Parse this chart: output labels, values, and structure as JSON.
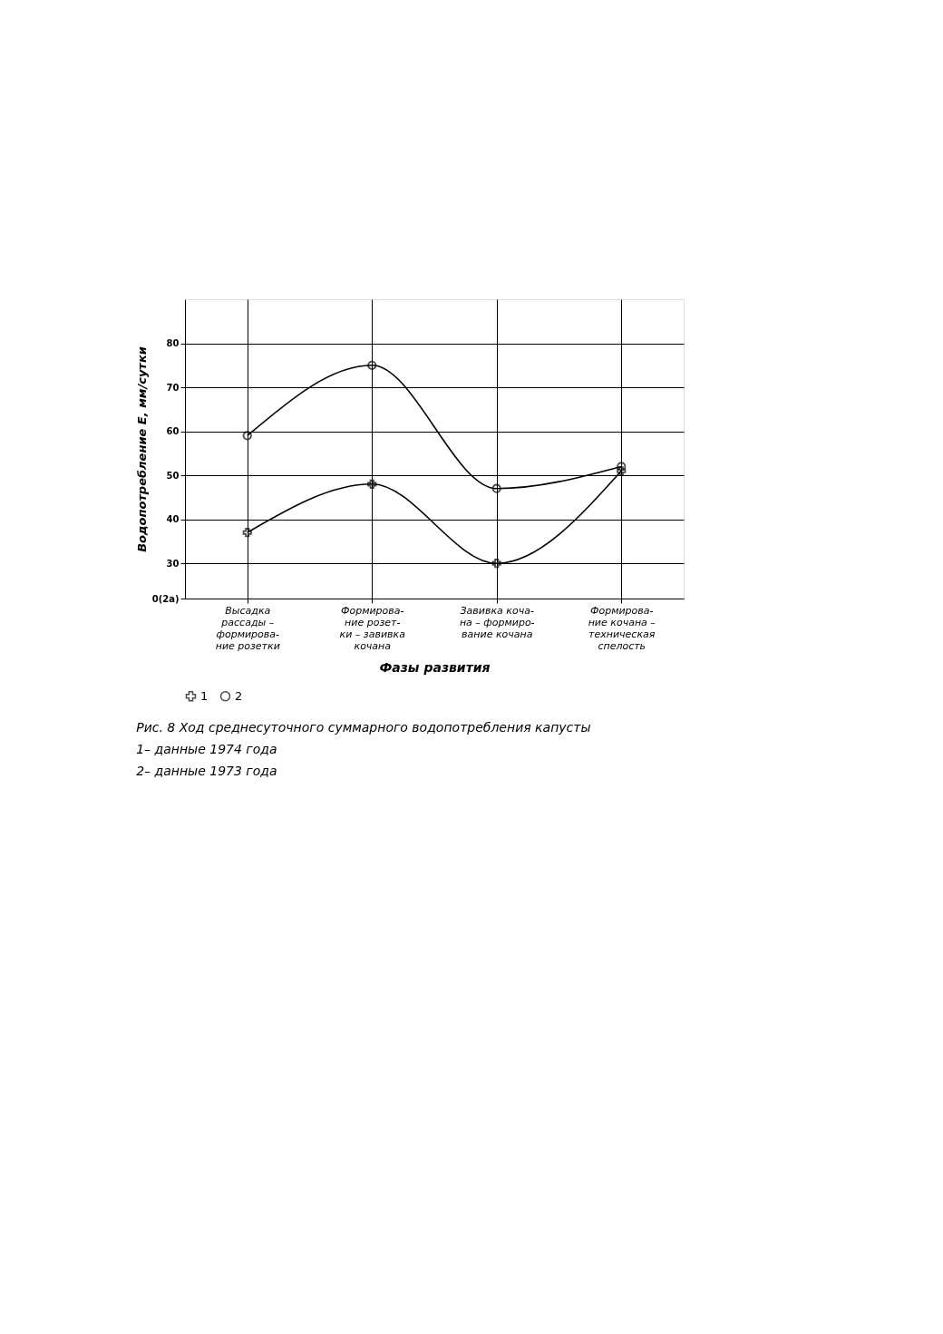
{
  "chart_data": {
    "type": "line",
    "xlabel": "Фазы развития",
    "ylabel": "Водопотребление E, мм/сутки",
    "categories": [
      "Высадка\nрассады –\nформирова-\nние розетки",
      "Формирова-\nние розет-\nки – завивка\nкочана",
      "Завивка коча-\nна – формиро-\nвание кочана",
      "Формирова-\nние кочана –\nтехническая\nспелость"
    ],
    "series": [
      {
        "name": "1",
        "color": "#000000",
        "marker": "cross",
        "values": [
          37,
          48,
          30,
          51
        ]
      },
      {
        "name": "2",
        "color": "#000000",
        "marker": "circle",
        "values": [
          59,
          75,
          47,
          52
        ]
      }
    ],
    "ylim": [
      22,
      90
    ],
    "yticks": [
      {
        "value": 22,
        "label": "0(2а)"
      },
      30,
      40,
      50,
      60,
      70,
      80
    ],
    "grid": true,
    "legend": "bottom",
    "annotations": [
      "Рис. 8 Ход среднесуточного суммарного водопотребления капусты",
      "1– данные 1974 года",
      "2– данные 1973 года"
    ]
  }
}
